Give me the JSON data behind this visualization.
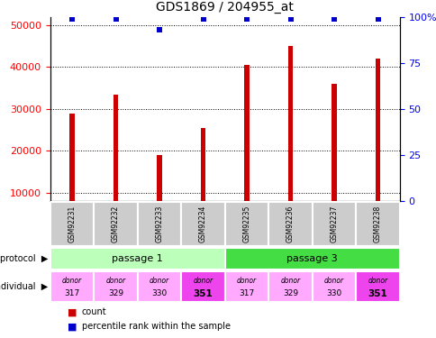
{
  "title": "GDS1869 / 204955_at",
  "samples": [
    "GSM92231",
    "GSM92232",
    "GSM92233",
    "GSM92234",
    "GSM92235",
    "GSM92236",
    "GSM92237",
    "GSM92238"
  ],
  "counts": [
    29000,
    33500,
    19000,
    25500,
    40500,
    45000,
    36000,
    42000
  ],
  "percentile_display": [
    99,
    99,
    93,
    99,
    99,
    99,
    99,
    99
  ],
  "ylim_left": [
    8000,
    52000
  ],
  "ylim_right": [
    0,
    100
  ],
  "yticks_left": [
    10000,
    20000,
    30000,
    40000,
    50000
  ],
  "yticks_right": [
    0,
    25,
    50,
    75,
    100
  ],
  "bar_color": "#cc0000",
  "dot_color": "#0000cc",
  "passage1_color": "#bbffbb",
  "passage3_color": "#44dd44",
  "sample_box_color": "#cccccc",
  "donor_colors_light": "#ffaaff",
  "donor_colors_dark": "#ee44ee",
  "donor_dark_indices": [
    3,
    7
  ],
  "passage_labels": [
    "passage 1",
    "passage 3"
  ],
  "individual_labels_top": [
    "donor",
    "donor",
    "donor",
    "donor",
    "donor",
    "donor",
    "donor",
    "donor"
  ],
  "individual_labels_bottom": [
    "317",
    "329",
    "330",
    "351",
    "317",
    "329",
    "330",
    "351"
  ],
  "growth_protocol_label": "growth protocol",
  "individual_label": "individual",
  "legend_count": "count",
  "legend_percentile": "percentile rank within the sample",
  "background_color": "#ffffff"
}
